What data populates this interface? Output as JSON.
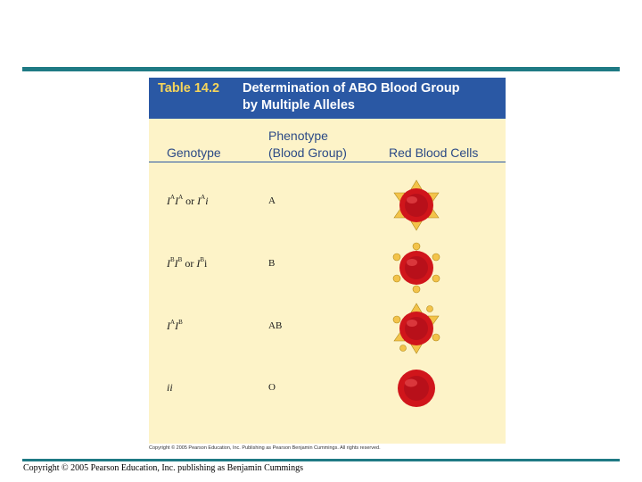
{
  "table": {
    "number": "Table 14.2",
    "title_line1": "Determination of ABO Blood Group",
    "title_line2": "by Multiple Alleles",
    "headers": {
      "genotype": "Genotype",
      "phenotype_line1": "Phenotype",
      "phenotype_line2": "(Blood Group)",
      "cells": "Red Blood Cells"
    },
    "rows": [
      {
        "g1": "I",
        "g1s": "A",
        "g2": "I",
        "g2s": "A",
        "or": " or ",
        "g3": "I",
        "g3s": "A",
        "g4": "i",
        "phenotype": "A",
        "antigens": "A"
      },
      {
        "g1": "I",
        "g1s": "B",
        "g2": "I",
        "g2s": "B",
        "or": " or ",
        "g3": "I",
        "g3s": "B",
        "g4": "i",
        "phenotype": "B",
        "antigens": "B"
      },
      {
        "g1": "I",
        "g1s": "A",
        "g2": "I",
        "g2s": "B",
        "or": "",
        "g3": "",
        "g3s": "",
        "g4": "",
        "phenotype": "AB",
        "antigens": "AB"
      },
      {
        "g1": "ii",
        "g1s": "",
        "g2": "",
        "g2s": "",
        "or": "",
        "g3": "",
        "g3s": "",
        "g4": "",
        "phenotype": "O",
        "antigens": "none"
      }
    ],
    "image_copyright": "Copyright © 2005 Pearson Education, Inc. Publishing as Pearson Benjamin Cummings. All rights reserved."
  },
  "footer": {
    "copyright": "Copyright © 2005 Pearson Education, Inc. publishing as Benjamin Cummings"
  },
  "colors": {
    "accent_rule": "#1f7a84",
    "title_bar": "#2a58a4",
    "table_bg": "#fdf3c8",
    "cell_red": "#d0151b",
    "antigen_gold": "#f3c34a"
  }
}
